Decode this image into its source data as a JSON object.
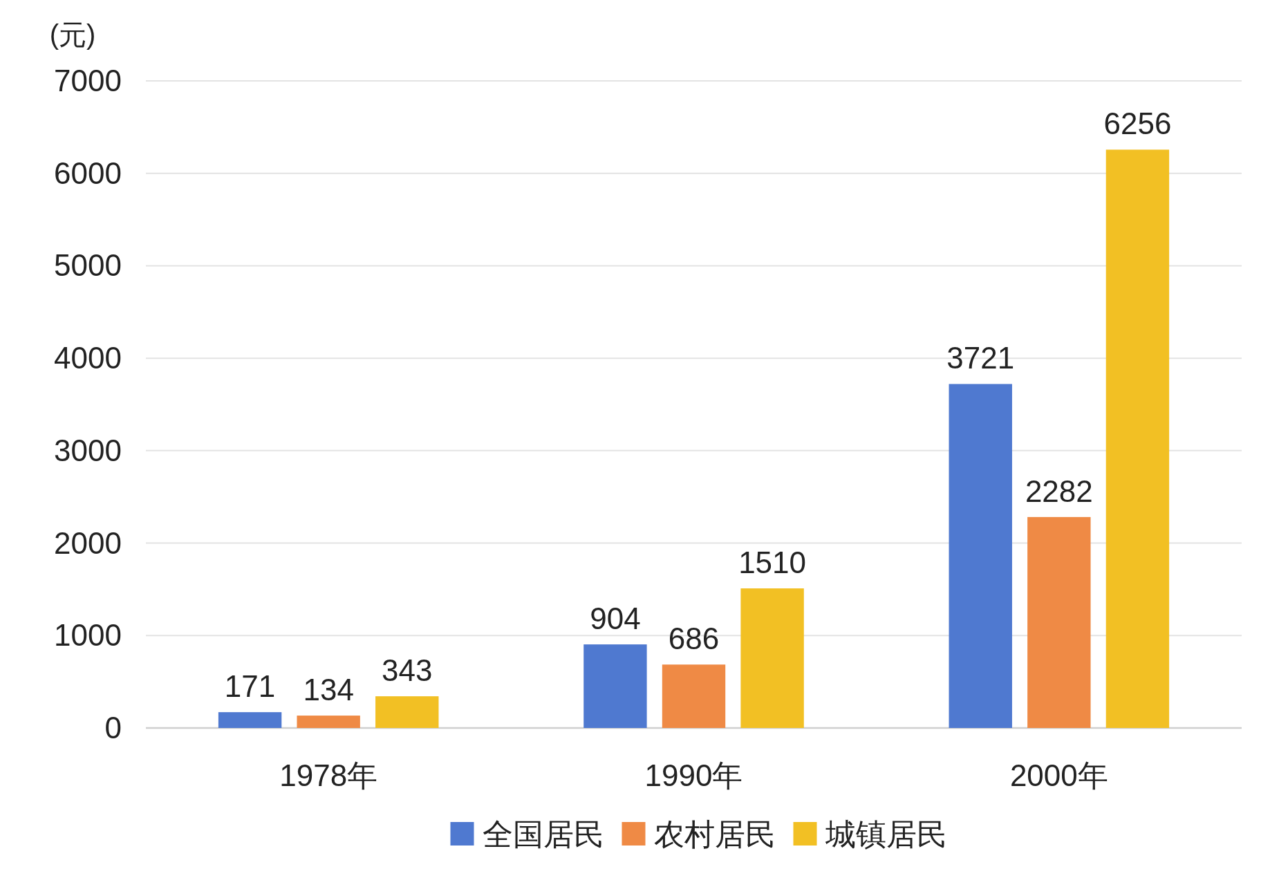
{
  "chart_data": {
    "type": "bar",
    "ylabel": "(元)",
    "categories": [
      "1978年",
      "1990年",
      "2000年"
    ],
    "series": [
      {
        "name": "全国居民",
        "color": "#4f79d0",
        "values": [
          171,
          904,
          3721
        ]
      },
      {
        "name": "农村居民",
        "color": "#ef8a45",
        "values": [
          134,
          686,
          2282
        ]
      },
      {
        "name": "城镇居民",
        "color": "#f2c024",
        "values": [
          343,
          1510,
          6256
        ]
      }
    ],
    "ylim": [
      0,
      7000
    ],
    "yticks": [
      0,
      1000,
      2000,
      3000,
      4000,
      5000,
      6000,
      7000
    ],
    "grid": "y",
    "legend": "bottom",
    "data_labels": true
  }
}
